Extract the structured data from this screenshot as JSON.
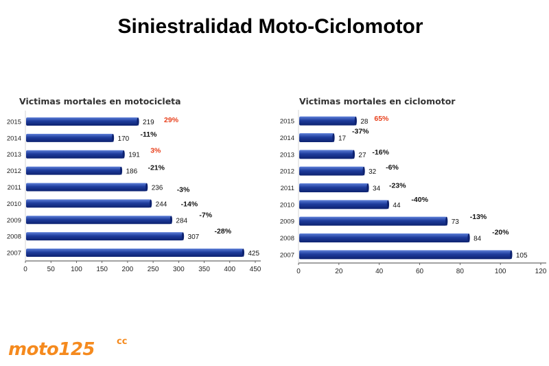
{
  "page": {
    "title": "Siniestralidad Moto-Ciclomotor"
  },
  "logo": {
    "text": "moto125",
    "superscript": "cc"
  },
  "colors": {
    "bar": "#1e3c9c",
    "bar_dark": "#0d2270",
    "bar_light": "#5d7fd8",
    "axis": "#444444",
    "label": "#111111",
    "highlight": "#e8401c"
  },
  "chart_data": [
    {
      "type": "bar",
      "orientation": "horizontal",
      "title": "Victimas mortales en motocicleta",
      "categories": [
        "2015",
        "2014",
        "2013",
        "2012",
        "2011",
        "2010",
        "2009",
        "2008",
        "2007"
      ],
      "values": [
        219,
        170,
        191,
        186,
        236,
        244,
        284,
        307,
        425
      ],
      "value_labels": [
        "219",
        "170",
        "191",
        "186",
        "236",
        "244",
        "284",
        "307",
        "425"
      ],
      "changes": [
        "29%",
        "-11%",
        "3%",
        "-21%",
        "-3%",
        "-14%",
        "-7%",
        "-28%",
        ""
      ],
      "change_highlight": [
        true,
        false,
        true,
        false,
        false,
        false,
        false,
        false,
        false
      ],
      "xlim": [
        0,
        450
      ],
      "xticks": [
        "0",
        "50",
        "100",
        "150",
        "200",
        "250",
        "300",
        "350",
        "400",
        "450"
      ]
    },
    {
      "type": "bar",
      "orientation": "horizontal",
      "title": "Victimas mortales en ciclomotor",
      "categories": [
        "2015",
        "2014",
        "2013",
        "2012",
        "2011",
        "2010",
        "2009",
        "2008",
        "2007"
      ],
      "values": [
        28,
        17,
        27,
        32,
        34,
        44,
        73,
        84,
        105
      ],
      "value_labels": [
        "28",
        "17",
        "27",
        "32",
        "34",
        "44",
        "73",
        "84",
        "105"
      ],
      "changes": [
        "65%",
        "-37%",
        "-16%",
        "-6%",
        "-23%",
        "-40%",
        "-13%",
        "-20%",
        ""
      ],
      "change_highlight": [
        true,
        false,
        false,
        false,
        false,
        false,
        false,
        false,
        false
      ],
      "xlim": [
        0,
        120
      ],
      "xticks": [
        "0",
        "20",
        "40",
        "60",
        "80",
        "100",
        "120"
      ]
    }
  ]
}
